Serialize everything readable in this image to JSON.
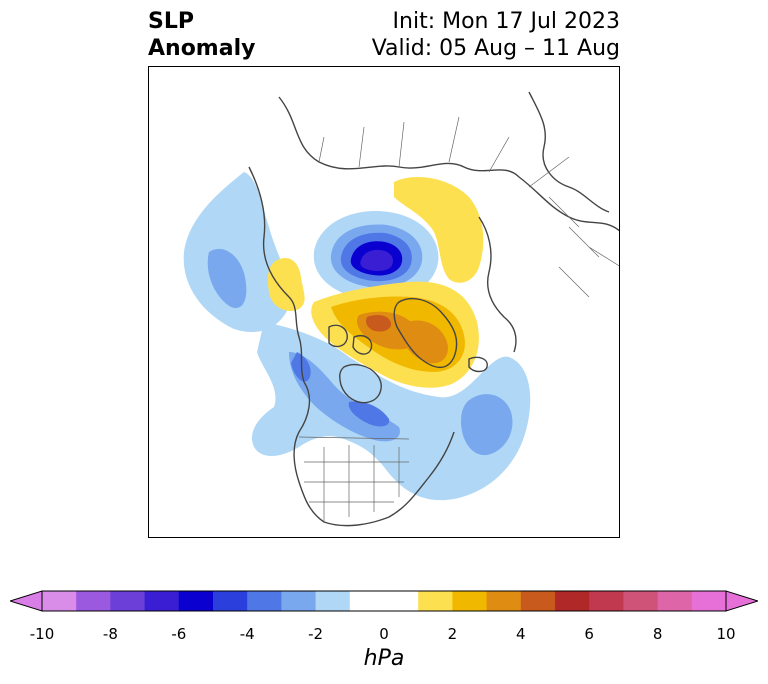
{
  "title": {
    "left_line1": "SLP",
    "left_line2": "Anomaly",
    "right_line1": "Init: Mon 17 Jul 2023",
    "right_line2": "Valid: 05 Aug – 11 Aug"
  },
  "map": {
    "projection": "polar stereographic (North Pole)",
    "variable": "sea level pressure anomaly"
  },
  "colorbar": {
    "units": "hPa",
    "tick_labels": [
      "-10",
      "-8",
      "-6",
      "-4",
      "-2",
      "0",
      "2",
      "4",
      "6",
      "8",
      "10"
    ],
    "extend": "both",
    "bins": [
      {
        "color": "#d98ce8"
      },
      {
        "color": "#9b59e0"
      },
      {
        "color": "#6b3fd8"
      },
      {
        "color": "#3a1ed4"
      },
      {
        "color": "#0a00d0"
      },
      {
        "color": "#2a3fdc"
      },
      {
        "color": "#4f78e6"
      },
      {
        "color": "#7aa8ee"
      },
      {
        "color": "#b0d8f6"
      },
      {
        "color": "#ffffff"
      },
      {
        "color": "#ffffff"
      },
      {
        "color": "#fde050"
      },
      {
        "color": "#f1b800"
      },
      {
        "color": "#de8c12"
      },
      {
        "color": "#c75a1c"
      },
      {
        "color": "#b12828"
      },
      {
        "color": "#c0394f"
      },
      {
        "color": "#cf5378"
      },
      {
        "color": "#dd65a8"
      },
      {
        "color": "#e770d8"
      }
    ],
    "min_color": "#d87ee6",
    "max_color": "#e770d8"
  }
}
